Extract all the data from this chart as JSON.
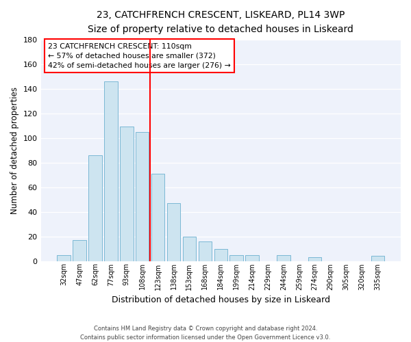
{
  "title": "23, CATCHFRENCH CRESCENT, LISKEARD, PL14 3WP",
  "subtitle": "Size of property relative to detached houses in Liskeard",
  "xlabel": "Distribution of detached houses by size in Liskeard",
  "ylabel": "Number of detached properties",
  "bar_labels": [
    "32sqm",
    "47sqm",
    "62sqm",
    "77sqm",
    "93sqm",
    "108sqm",
    "123sqm",
    "138sqm",
    "153sqm",
    "168sqm",
    "184sqm",
    "199sqm",
    "214sqm",
    "229sqm",
    "244sqm",
    "259sqm",
    "274sqm",
    "290sqm",
    "305sqm",
    "320sqm",
    "335sqm"
  ],
  "bar_values": [
    5,
    17,
    86,
    146,
    109,
    105,
    71,
    47,
    20,
    16,
    10,
    5,
    5,
    0,
    5,
    0,
    3,
    0,
    0,
    0,
    4
  ],
  "bar_color": "#cde4f0",
  "bar_edge_color": "#7ab8d4",
  "vline_x": 5.5,
  "vline_color": "red",
  "annotation_line1": "23 CATCHFRENCH CRESCENT: 110sqm",
  "annotation_line2": "← 57% of detached houses are smaller (372)",
  "annotation_line3": "42% of semi-detached houses are larger (276) →",
  "annotation_box_color": "white",
  "annotation_box_edge_color": "red",
  "ylim": [
    0,
    180
  ],
  "yticks": [
    0,
    20,
    40,
    60,
    80,
    100,
    120,
    140,
    160,
    180
  ],
  "footnote1": "Contains HM Land Registry data © Crown copyright and database right 2024.",
  "footnote2": "Contains public sector information licensed under the Open Government Licence v3.0.",
  "background_color": "#eef2fb",
  "grid_color": "#ffffff"
}
